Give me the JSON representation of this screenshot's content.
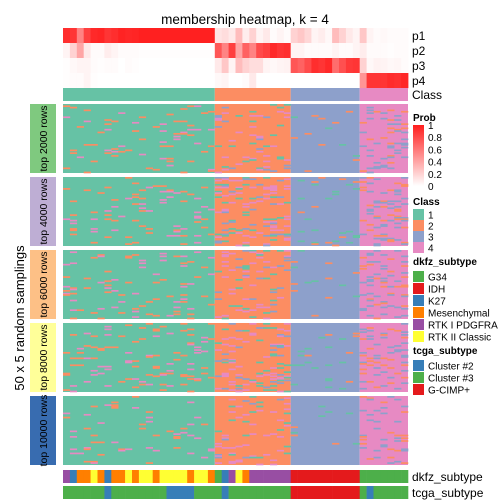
{
  "chart_data": {
    "type": "heatmap",
    "title": "membership heatmap, k = 4",
    "ylabel": "50 x 5 random samplings",
    "n_samples": 50,
    "prob_rows": [
      "p1",
      "p2",
      "p3",
      "p4"
    ],
    "class_row_label": "Class",
    "class_segments": [
      {
        "class": "1",
        "from": 0,
        "to": 22
      },
      {
        "class": "2",
        "from": 22,
        "to": 33
      },
      {
        "class": "3",
        "from": 33,
        "to": 43
      },
      {
        "class": "4",
        "from": 43,
        "to": 50
      }
    ],
    "prob_values": {
      "p1": [
        0.93,
        0.9,
        0.55,
        0.85,
        0.95,
        0.97,
        0.9,
        0.93,
        0.98,
        0.96,
        0.97,
        0.99,
        0.99,
        0.99,
        0.99,
        0.99,
        0.99,
        0.99,
        0.99,
        0.99,
        0.99,
        0.99,
        0.12,
        0.15,
        0.1,
        0.3,
        0.08,
        0.2,
        0.05,
        0.1,
        0.02,
        0.05,
        0.02,
        0.2,
        0.25,
        0.18,
        0.05,
        0.08,
        0.03,
        0.3,
        0.2,
        0.1,
        0.05,
        0.25,
        0.05,
        0.02,
        0.03,
        0.02,
        0.02,
        0.02
      ],
      "p2": [
        0.05,
        0.2,
        0.4,
        0.1,
        0.02,
        0.02,
        0.08,
        0.05,
        0.02,
        0.02,
        0.02,
        0.01,
        0.01,
        0.01,
        0.01,
        0.01,
        0.01,
        0.01,
        0.01,
        0.01,
        0.01,
        0.01,
        0.75,
        0.55,
        0.85,
        0.4,
        0.7,
        0.55,
        0.8,
        0.85,
        0.95,
        0.9,
        0.92,
        0.05,
        0.05,
        0.02,
        0.02,
        0.02,
        0.02,
        0.05,
        0.02,
        0.02,
        0.05,
        0.08,
        0.02,
        0.02,
        0.02,
        0.01,
        0.02,
        0.02
      ],
      "p3": [
        0.01,
        0.03,
        0.05,
        0.05,
        0.02,
        0.01,
        0.02,
        0.02,
        0.0,
        0.02,
        0.01,
        0.0,
        0.0,
        0.0,
        0.0,
        0.0,
        0.0,
        0.0,
        0.0,
        0.0,
        0.0,
        0.0,
        0.1,
        0.25,
        0.05,
        0.3,
        0.2,
        0.15,
        0.15,
        0.05,
        0.03,
        0.05,
        0.06,
        0.75,
        0.7,
        0.8,
        0.93,
        0.9,
        0.95,
        0.65,
        0.78,
        0.88,
        0.9,
        0.2,
        0.03,
        0.06,
        0.05,
        0.03,
        0.04,
        0.02
      ],
      "p4": [
        0.01,
        0.02,
        0.02,
        0.05,
        0.01,
        0.0,
        0.0,
        0.0,
        0.0,
        0.0,
        0.0,
        0.0,
        0.0,
        0.0,
        0.0,
        0.0,
        0.0,
        0.0,
        0.0,
        0.0,
        0.0,
        0.0,
        0.03,
        0.05,
        0.0,
        0.0,
        0.02,
        0.1,
        0.0,
        0.0,
        0.0,
        0.0,
        0.0,
        0.0,
        0.0,
        0.0,
        0.0,
        0.0,
        0.0,
        0.0,
        0.0,
        0.0,
        0.0,
        0.47,
        0.9,
        0.9,
        0.9,
        0.94,
        0.92,
        0.96
      ]
    },
    "row_groups": [
      "top 2000 rows",
      "top 4000 rows",
      "top 6000 rows",
      "top 8000 rows",
      "top 10000 rows"
    ],
    "bottom_annotations": [
      "dkfz_subtype",
      "tcga_subtype"
    ],
    "dkfz_subtype": [
      "RTK I PDGFRA",
      "K27",
      "Mesenchymal",
      "Mesenchymal",
      "RTK II Classic",
      "Mesenchymal",
      "K27",
      "Mesenchymal",
      "Mesenchymal",
      "RTK II Classic",
      "Mesenchymal",
      "RTK II Classic",
      "RTK II Classic",
      "Mesenchymal",
      "RTK II Classic",
      "RTK II Classic",
      "RTK II Classic",
      "RTK II Classic",
      "Mesenchymal",
      "RTK II Classic",
      "RTK II Classic",
      "Mesenchymal",
      "G34",
      "K27",
      "RTK I PDGFRA",
      "RTK II Classic",
      "Mesenchymal",
      "RTK I PDGFRA",
      "RTK I PDGFRA",
      "RTK I PDGFRA",
      "RTK I PDGFRA",
      "RTK I PDGFRA",
      "RTK I PDGFRA",
      "IDH",
      "IDH",
      "IDH",
      "IDH",
      "IDH",
      "IDH",
      "IDH",
      "IDH",
      "IDH",
      "IDH",
      "G34",
      "G34",
      "G34",
      "G34",
      "G34",
      "G34",
      "G34"
    ],
    "tcga_subtype": [
      "Cluster #3",
      "Cluster #3",
      "Cluster #3",
      "Cluster #3",
      "Cluster #3",
      "Cluster #3",
      "Cluster #2",
      "Cluster #3",
      "Cluster #3",
      "Cluster #3",
      "Cluster #3",
      "Cluster #3",
      "Cluster #3",
      "Cluster #3",
      "Cluster #3",
      "Cluster #2",
      "Cluster #2",
      "Cluster #2",
      "Cluster #2",
      "Cluster #3",
      "Cluster #3",
      "Cluster #3",
      "Cluster #3",
      "Cluster #2",
      "Cluster #3",
      "Cluster #3",
      "Cluster #3",
      "Cluster #3",
      "Cluster #3",
      "Cluster #3",
      "Cluster #3",
      "Cluster #3",
      "Cluster #3",
      "G-CIMP+",
      "G-CIMP+",
      "G-CIMP+",
      "G-CIMP+",
      "G-CIMP+",
      "G-CIMP+",
      "G-CIMP+",
      "G-CIMP+",
      "G-CIMP+",
      "G-CIMP+",
      "Cluster #3",
      "Cluster #2",
      "Cluster #3",
      "Cluster #3",
      "Cluster #3",
      "Cluster #3",
      "Cluster #3"
    ],
    "legends": {
      "prob": {
        "title": "Prob",
        "ticks": [
          "1",
          "0.8",
          "0.6",
          "0.4",
          "0.2",
          "0"
        ]
      },
      "class": {
        "title": "Class",
        "items": [
          {
            "label": "1",
            "color": "#66c2a5"
          },
          {
            "label": "2",
            "color": "#fc8d62"
          },
          {
            "label": "3",
            "color": "#8da0cb"
          },
          {
            "label": "4",
            "color": "#e78ac3"
          }
        ]
      },
      "dkfz_subtype": {
        "title": "dkfz_subtype",
        "items": [
          {
            "label": "G34",
            "color": "#4daf4a"
          },
          {
            "label": "IDH",
            "color": "#e41a1c"
          },
          {
            "label": "K27",
            "color": "#377eb8"
          },
          {
            "label": "Mesenchymal",
            "color": "#ff7f00"
          },
          {
            "label": "RTK I PDGFRA",
            "color": "#984ea3"
          },
          {
            "label": "RTK II Classic",
            "color": "#ffff33"
          }
        ]
      },
      "tcga_subtype": {
        "title": "tcga_subtype",
        "items": [
          {
            "label": "Cluster #2",
            "color": "#377eb8"
          },
          {
            "label": "Cluster #3",
            "color": "#4daf4a"
          },
          {
            "label": "G-CIMP+",
            "color": "#e41a1c"
          }
        ]
      }
    },
    "group_colors": [
      "#7fc97f",
      "#beaed4",
      "#fdc086",
      "#ffff99",
      "#386cb0"
    ]
  }
}
